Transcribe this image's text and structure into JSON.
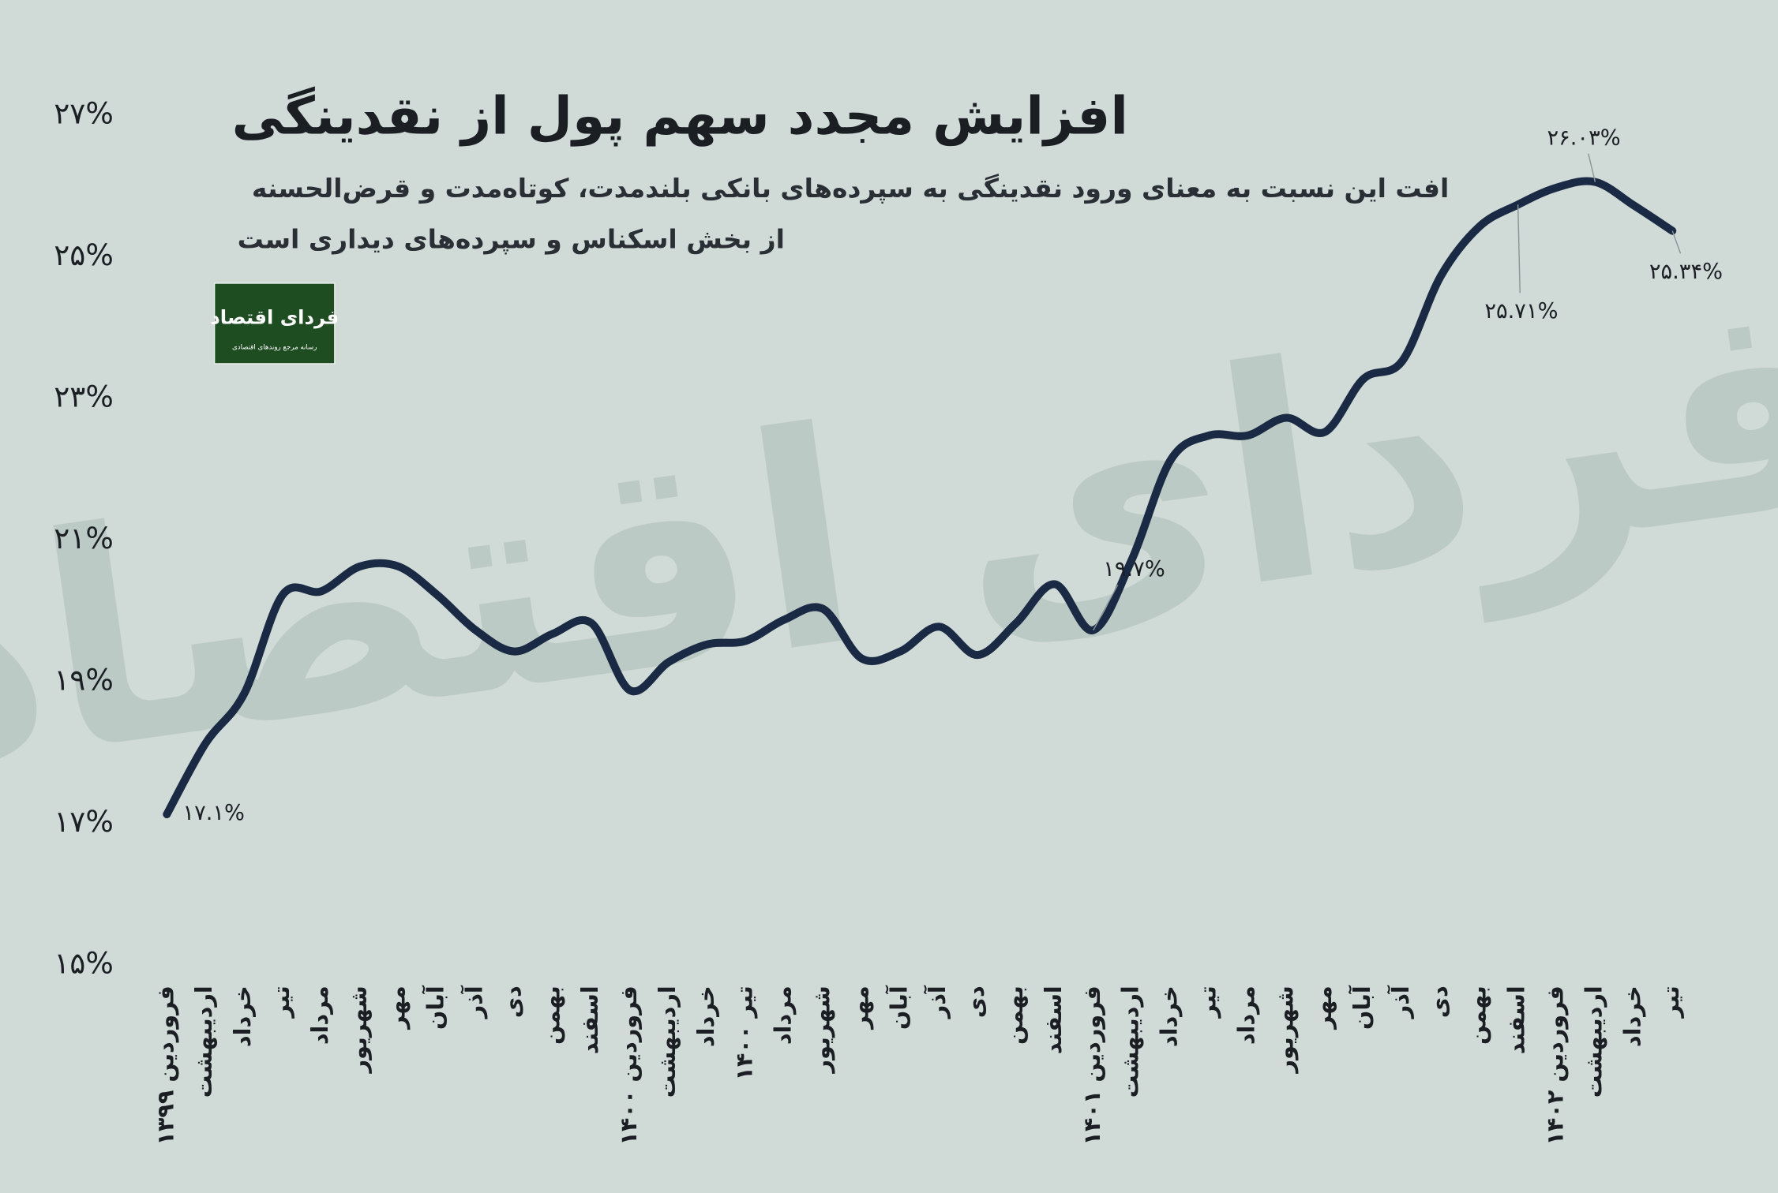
{
  "chart_data": {
    "type": "line",
    "title": "افزایش مجدد سهم پول از نقدینگی",
    "subtitle": [
      "افت این نسبت به معنای ورود نقدینگی به سپرده‌های بانکی بلندمدت، کوتاه‌مدت و قرض‌الحسنه",
      "از بخش اسکناس و سپرده‌های دیداری است"
    ],
    "logo": {
      "name": "فردای اقتصاد",
      "tagline": "رسانه مرجع روندهای اقتصادی"
    },
    "categories": [
      "فروردین ۱۳۹۹",
      "اردیبهشت",
      "خرداد",
      "تیر",
      "مرداد",
      "شهریور",
      "مهر",
      "آبان",
      "آذر",
      "دی",
      "بهمن",
      "اسفند",
      "فروردین ۱۴۰۰",
      "اردیبهشت",
      "خرداد",
      "تیر ۱۴۰۰",
      "مرداد",
      "شهریور",
      "مهر",
      "آبان",
      "آذر",
      "دی",
      "بهمن",
      "اسفند",
      "فروردین ۱۴۰۱",
      "اردیبهشت",
      "خرداد",
      "تیر",
      "مرداد",
      "شهریور",
      "مهر",
      "آبان",
      "آذر",
      "دی",
      "بهمن",
      "اسفند",
      "فروردین ۱۴۰۲",
      "اردیبهشت",
      "خرداد",
      "تیر"
    ],
    "values": [
      17.1,
      18.1,
      18.8,
      20.2,
      20.25,
      20.6,
      20.6,
      20.2,
      19.7,
      19.4,
      19.65,
      19.8,
      18.85,
      19.25,
      19.5,
      19.55,
      19.85,
      20.0,
      19.3,
      19.4,
      19.75,
      19.35,
      19.8,
      20.35,
      19.7,
      20.7,
      22.1,
      22.45,
      22.45,
      22.7,
      22.5,
      23.25,
      23.5,
      24.7,
      25.4,
      25.71,
      25.95,
      26.03,
      25.7,
      25.34
    ],
    "value_labels": [
      "۱۷.۱%",
      null,
      null,
      null,
      null,
      null,
      null,
      null,
      null,
      null,
      null,
      null,
      null,
      null,
      null,
      null,
      null,
      null,
      null,
      null,
      null,
      null,
      null,
      null,
      "۱۹.۷%",
      null,
      null,
      null,
      null,
      null,
      null,
      null,
      null,
      null,
      null,
      "۲۵.۷۱%",
      null,
      "۲۶.۰۳%",
      null,
      "۲۵.۳۴%"
    ],
    "color": "#1b2a44",
    "ylim": [
      15,
      27
    ],
    "yticks": [
      {
        "value": 15,
        "label": "۱۵%"
      },
      {
        "value": 17,
        "label": "۱۷%"
      },
      {
        "value": 19,
        "label": "۱۹%"
      },
      {
        "value": 21,
        "label": "۲۱%"
      },
      {
        "value": 23,
        "label": "۲۳%"
      },
      {
        "value": 25,
        "label": "۲۵%"
      },
      {
        "value": 27,
        "label": "۲۷%"
      }
    ]
  }
}
